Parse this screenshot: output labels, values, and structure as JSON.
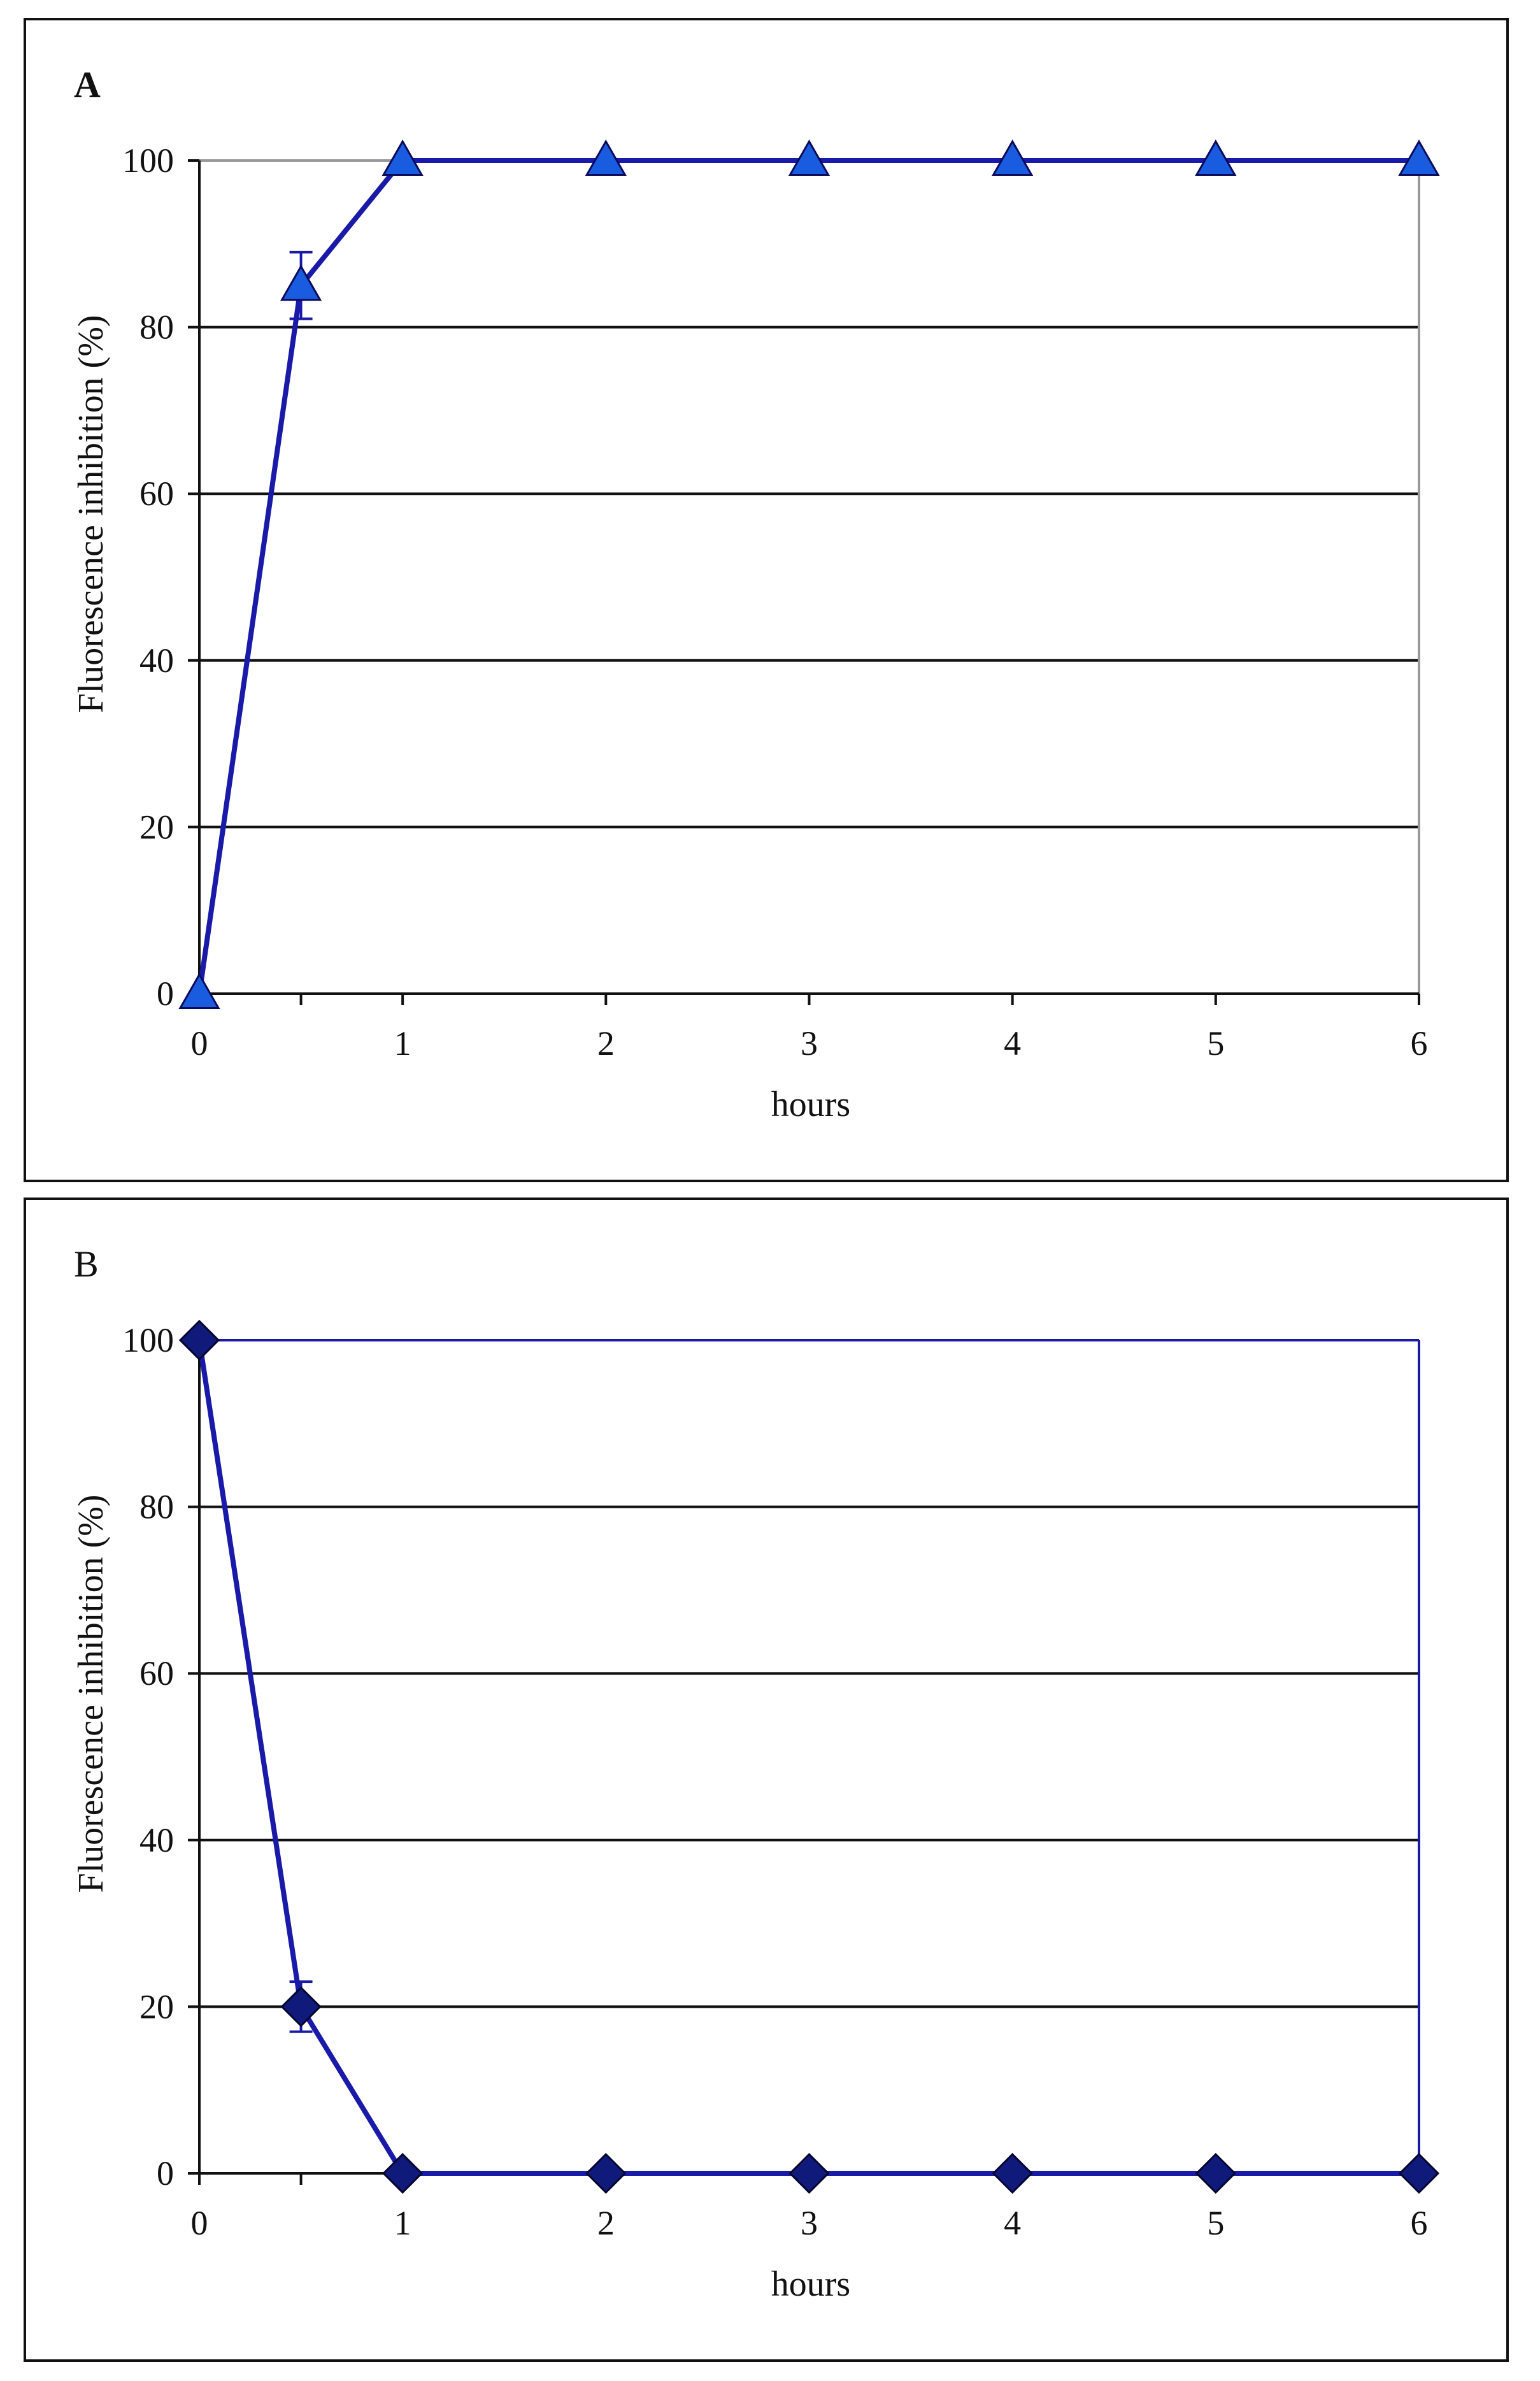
{
  "chart_data": [
    {
      "panel_label": "A",
      "type": "line",
      "xlabel": "hours",
      "ylabel": "Fluorescence inhibition (%)",
      "x": [
        0,
        0.5,
        1,
        2,
        3,
        4,
        5,
        6
      ],
      "x_tick_labels": [
        {
          "value": 0,
          "label": "0"
        },
        {
          "value": 0.5,
          "label": ""
        },
        {
          "value": 1,
          "label": "1"
        },
        {
          "value": 2,
          "label": "2"
        },
        {
          "value": 3,
          "label": "3"
        },
        {
          "value": 4,
          "label": "4"
        },
        {
          "value": 5,
          "label": "5"
        },
        {
          "value": 6,
          "label": "6"
        }
      ],
      "y_ticks": [
        0,
        20,
        40,
        60,
        80,
        100
      ],
      "xlim": [
        0,
        6
      ],
      "ylim": [
        0,
        100
      ],
      "grid": "horizontal",
      "plot_area_border_color": "#999999",
      "series": [
        {
          "marker": "triangle",
          "color": "#1a1aa8",
          "marker_fill": "#1a5ce0",
          "values": [
            0,
            85,
            100,
            100,
            100,
            100,
            100,
            100
          ],
          "error": [
            0,
            4,
            0,
            0,
            0,
            0,
            0,
            0
          ]
        }
      ]
    },
    {
      "panel_label": "B",
      "type": "line",
      "xlabel": "hours",
      "ylabel": "Fluorescence inhibition (%)",
      "x": [
        0,
        0.5,
        1,
        2,
        3,
        4,
        5,
        6
      ],
      "x_tick_labels": [
        {
          "value": 0,
          "label": "0"
        },
        {
          "value": 0.5,
          "label": ""
        },
        {
          "value": 1,
          "label": "1"
        },
        {
          "value": 2,
          "label": "2"
        },
        {
          "value": 3,
          "label": "3"
        },
        {
          "value": 4,
          "label": "4"
        },
        {
          "value": 5,
          "label": "5"
        },
        {
          "value": 6,
          "label": "6"
        }
      ],
      "y_ticks": [
        0,
        20,
        40,
        60,
        80,
        100
      ],
      "xlim": [
        0,
        6
      ],
      "ylim": [
        0,
        100
      ],
      "grid": "horizontal",
      "plot_area_border_color": "#1a1aa8",
      "series": [
        {
          "marker": "diamond",
          "color": "#1a1aa8",
          "marker_fill": "#0f1a7a",
          "values": [
            100,
            20,
            0,
            0,
            0,
            0,
            0,
            0
          ],
          "error": [
            0,
            3,
            0,
            0,
            0,
            0,
            0,
            0
          ]
        }
      ]
    }
  ]
}
